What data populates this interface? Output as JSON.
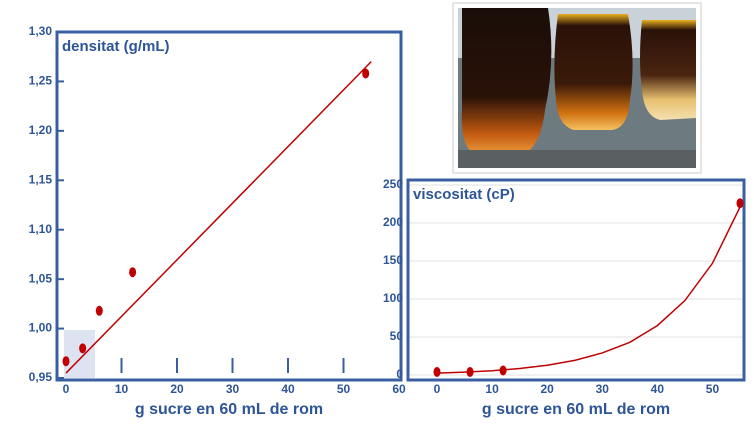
{
  "chart_data": [
    {
      "type": "scatter",
      "title": "densitat (g/mL)",
      "x_label": "g sucre en 60 mL de rom",
      "x": [
        0,
        3,
        6,
        12,
        54
      ],
      "values": [
        0.967,
        0.98,
        1.018,
        1.057,
        1.258
      ],
      "color": "#c00000",
      "trendline": {
        "color": "#c00000",
        "x": [
          0,
          55
        ],
        "values": [
          0.955,
          1.27
        ]
      },
      "xlim": [
        0,
        60
      ],
      "xticks": [
        0,
        10,
        20,
        30,
        40,
        50,
        60
      ],
      "ylim": [
        0.95,
        1.3
      ],
      "yticks": [
        {
          "value": 0.95,
          "label": "0,95"
        },
        {
          "value": 1.0,
          "label": "1,00"
        },
        {
          "value": 1.05,
          "label": "1,05"
        },
        {
          "value": 1.1,
          "label": "1,10"
        },
        {
          "value": 1.15,
          "label": "1,15"
        },
        {
          "value": 1.2,
          "label": "1,20"
        },
        {
          "value": 1.25,
          "label": "1,25"
        },
        {
          "value": 1.3,
          "label": "1,30"
        }
      ],
      "grid": false
    },
    {
      "type": "scatter",
      "title": "viscositat (cP)",
      "x_label": "g sucre en 60 mL de rom",
      "x": [
        0,
        6,
        12,
        55
      ],
      "values": [
        4,
        4,
        6,
        226
      ],
      "color": "#c00000",
      "trendline": {
        "color": "#c00000",
        "x": [
          0,
          5,
          10,
          15,
          20,
          25,
          30,
          35,
          40,
          45,
          50,
          55
        ],
        "values": [
          2.5,
          3.8,
          5.6,
          8.5,
          12.8,
          19.2,
          29,
          43,
          65,
          98,
          147,
          221
        ]
      },
      "xlim": [
        0,
        55
      ],
      "xticks": [
        0,
        10,
        20,
        30,
        40,
        50
      ],
      "ylim": [
        0,
        250
      ],
      "yticks": [
        0,
        50,
        100,
        150,
        200,
        250
      ],
      "grid": true
    }
  ]
}
